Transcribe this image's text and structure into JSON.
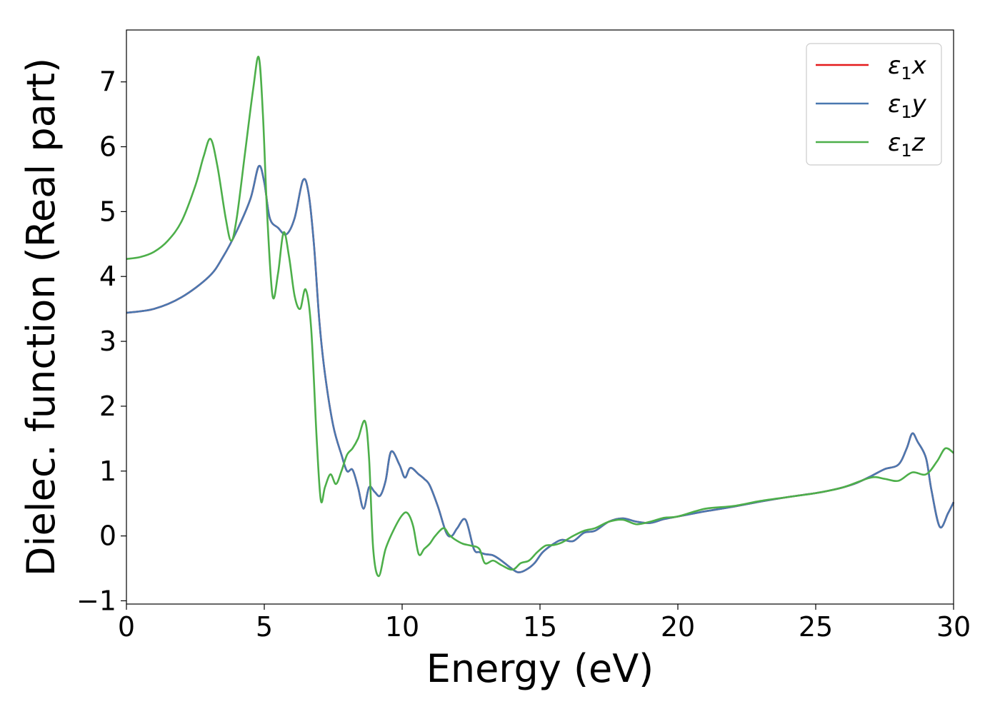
{
  "chart_data": {
    "type": "line",
    "xlabel": "Energy (eV)",
    "ylabel": "Dielec. function (Real part)",
    "xlim": [
      0,
      30
    ],
    "ylim": [
      -1.05,
      7.8
    ],
    "xticks": [
      0,
      5,
      10,
      15,
      20,
      25,
      30
    ],
    "yticks": [
      -1,
      0,
      1,
      2,
      3,
      4,
      5,
      6,
      7
    ],
    "grid": false,
    "legend_position": "top-right",
    "series": [
      {
        "name": "ε1x",
        "name_base": "ε",
        "name_sub": "1",
        "name_var": "x",
        "color": "#e41a1c",
        "x": [
          0,
          1,
          2,
          3,
          3.5,
          4,
          4.5,
          4.8,
          5,
          5.2,
          5.5,
          5.8,
          6.1,
          6.4,
          6.6,
          6.8,
          7,
          7.2,
          7.5,
          7.8,
          8,
          8.2,
          8.4,
          8.6,
          8.8,
          9,
          9.2,
          9.4,
          9.6,
          9.9,
          10.1,
          10.3,
          10.6,
          10.8,
          11,
          11.3,
          11.6,
          11.8,
          12,
          12.3,
          12.6,
          12.8,
          13,
          13.3,
          13.6,
          13.9,
          14.2,
          14.5,
          14.8,
          15.1,
          15.5,
          15.8,
          16.2,
          16.6,
          17,
          17.5,
          18,
          18.5,
          19,
          19.5,
          20,
          21,
          22,
          23,
          24,
          25,
          25.5,
          26,
          26.5,
          27,
          27.5,
          28,
          28.3,
          28.5,
          28.7,
          29,
          29.2,
          29.5,
          29.8,
          30
        ],
        "y": [
          3.44,
          3.5,
          3.68,
          4.0,
          4.3,
          4.7,
          5.2,
          5.7,
          5.45,
          4.9,
          4.75,
          4.65,
          4.9,
          5.48,
          5.3,
          4.5,
          3.3,
          2.5,
          1.7,
          1.25,
          1.0,
          1.02,
          0.75,
          0.42,
          0.75,
          0.68,
          0.62,
          0.85,
          1.3,
          1.1,
          0.9,
          1.05,
          0.95,
          0.88,
          0.78,
          0.45,
          0.05,
          0.0,
          0.12,
          0.25,
          -0.2,
          -0.25,
          -0.28,
          -0.3,
          -0.38,
          -0.48,
          -0.56,
          -0.52,
          -0.42,
          -0.25,
          -0.12,
          -0.06,
          -0.08,
          0.05,
          0.08,
          0.22,
          0.27,
          0.22,
          0.2,
          0.26,
          0.3,
          0.38,
          0.45,
          0.53,
          0.6,
          0.66,
          0.7,
          0.75,
          0.82,
          0.92,
          1.03,
          1.1,
          1.35,
          1.58,
          1.45,
          1.2,
          0.7,
          0.14,
          0.35,
          0.52
        ]
      },
      {
        "name": "ε1y",
        "name_base": "ε",
        "name_sub": "1",
        "name_var": "y",
        "color": "#4a78b0",
        "x": [
          0,
          1,
          2,
          3,
          3.5,
          4,
          4.5,
          4.8,
          5,
          5.2,
          5.5,
          5.8,
          6.1,
          6.4,
          6.6,
          6.8,
          7,
          7.2,
          7.5,
          7.8,
          8,
          8.2,
          8.4,
          8.6,
          8.8,
          9,
          9.2,
          9.4,
          9.6,
          9.9,
          10.1,
          10.3,
          10.6,
          10.8,
          11,
          11.3,
          11.6,
          11.8,
          12,
          12.3,
          12.6,
          12.8,
          13,
          13.3,
          13.6,
          13.9,
          14.2,
          14.5,
          14.8,
          15.1,
          15.5,
          15.8,
          16.2,
          16.6,
          17,
          17.5,
          18,
          18.5,
          19,
          19.5,
          20,
          21,
          22,
          23,
          24,
          25,
          25.5,
          26,
          26.5,
          27,
          27.5,
          28,
          28.3,
          28.5,
          28.7,
          29,
          29.2,
          29.5,
          29.8,
          30
        ],
        "y": [
          3.44,
          3.5,
          3.68,
          4.0,
          4.3,
          4.7,
          5.2,
          5.7,
          5.45,
          4.9,
          4.75,
          4.65,
          4.9,
          5.48,
          5.3,
          4.5,
          3.3,
          2.5,
          1.7,
          1.25,
          1.0,
          1.02,
          0.75,
          0.42,
          0.75,
          0.68,
          0.62,
          0.85,
          1.3,
          1.1,
          0.9,
          1.05,
          0.95,
          0.88,
          0.78,
          0.45,
          0.05,
          0.0,
          0.12,
          0.25,
          -0.2,
          -0.25,
          -0.28,
          -0.3,
          -0.38,
          -0.48,
          -0.56,
          -0.52,
          -0.42,
          -0.25,
          -0.12,
          -0.06,
          -0.08,
          0.05,
          0.08,
          0.22,
          0.27,
          0.22,
          0.2,
          0.26,
          0.3,
          0.38,
          0.45,
          0.53,
          0.6,
          0.66,
          0.7,
          0.75,
          0.82,
          0.92,
          1.03,
          1.1,
          1.35,
          1.58,
          1.45,
          1.2,
          0.7,
          0.14,
          0.35,
          0.52
        ]
      },
      {
        "name": "ε1z",
        "name_base": "ε",
        "name_sub": "1",
        "name_var": "z",
        "color": "#4daf4a",
        "x": [
          0,
          0.5,
          1,
          1.5,
          2,
          2.5,
          2.8,
          3.05,
          3.3,
          3.6,
          3.8,
          4.0,
          4.3,
          4.6,
          4.8,
          4.95,
          5.1,
          5.3,
          5.5,
          5.7,
          5.9,
          6.1,
          6.3,
          6.5,
          6.7,
          6.9,
          7.05,
          7.2,
          7.4,
          7.6,
          7.8,
          8.0,
          8.2,
          8.4,
          8.65,
          8.8,
          8.95,
          9.15,
          9.4,
          9.7,
          10.0,
          10.2,
          10.4,
          10.6,
          10.8,
          11.0,
          11.2,
          11.5,
          11.7,
          11.9,
          12.2,
          12.5,
          12.8,
          13.0,
          13.3,
          13.6,
          14.0,
          14.3,
          14.6,
          14.9,
          15.2,
          15.5,
          15.8,
          16.2,
          16.6,
          17,
          17.5,
          18,
          18.5,
          19,
          19.5,
          20,
          21,
          22,
          23,
          24,
          25,
          26,
          27,
          27.5,
          28,
          28.5,
          29,
          29.4,
          29.7,
          30
        ],
        "y": [
          4.27,
          4.3,
          4.38,
          4.55,
          4.85,
          5.4,
          5.85,
          6.12,
          5.7,
          4.9,
          4.55,
          4.9,
          5.9,
          6.9,
          7.38,
          6.5,
          5.0,
          3.7,
          4.05,
          4.68,
          4.3,
          3.7,
          3.5,
          3.8,
          3.2,
          1.5,
          0.55,
          0.75,
          0.95,
          0.8,
          1.0,
          1.25,
          1.35,
          1.5,
          1.77,
          1.2,
          -0.2,
          -0.62,
          -0.2,
          0.1,
          0.32,
          0.35,
          0.15,
          -0.28,
          -0.2,
          -0.12,
          0.0,
          0.12,
          0.02,
          -0.05,
          -0.12,
          -0.15,
          -0.2,
          -0.42,
          -0.38,
          -0.45,
          -0.52,
          -0.42,
          -0.38,
          -0.25,
          -0.15,
          -0.14,
          -0.1,
          0.0,
          0.08,
          0.12,
          0.22,
          0.25,
          0.18,
          0.22,
          0.28,
          0.3,
          0.42,
          0.46,
          0.54,
          0.6,
          0.66,
          0.75,
          0.9,
          0.88,
          0.85,
          0.98,
          0.95,
          1.15,
          1.35,
          1.28
        ]
      }
    ]
  }
}
